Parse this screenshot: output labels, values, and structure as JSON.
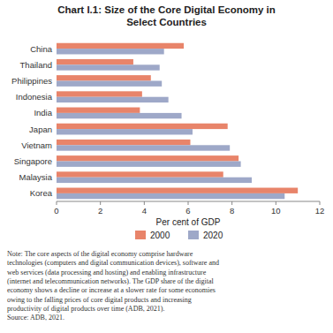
{
  "chart_data": {
    "type": "bar",
    "orientation": "horizontal",
    "title": "Chart I.1: Size of the Core Digital Economy in\nSelect Countries",
    "categories": [
      "China",
      "Thailand",
      "Philippines",
      "Indonesia",
      "India",
      "Japan",
      "Vietnam",
      "Singapore",
      "Malaysia",
      "Korea"
    ],
    "series": [
      {
        "name": "2000",
        "color": "#E8846A",
        "values": [
          5.8,
          3.5,
          4.3,
          3.9,
          3.8,
          7.8,
          6.1,
          8.3,
          7.6,
          11.0
        ]
      },
      {
        "name": "2020",
        "color": "#9EA8C8",
        "values": [
          4.9,
          4.7,
          4.8,
          5.1,
          5.7,
          6.2,
          7.9,
          8.4,
          8.9,
          10.4
        ]
      }
    ],
    "xlabel": "Per cent of GDP",
    "xlim": [
      0,
      12
    ],
    "xticks": [
      0,
      2,
      4,
      6,
      8,
      10,
      12
    ],
    "grid": false,
    "legend": "bottom",
    "note": "Note:  The core aspects of the digital economy comprise hardware\ntechnologies (computers and digital communication devices), software and\nweb services (data processing and hosting) and enabling infrastructure\n(internet and telecommunication networks). The GDP share of the digital\neconomy shows a decline or increase at a slower rate for some economies\nowing to the falling prices of core digital products and increasing\nproductivity of digital products over time (ADB, 2021).\nSource: ADB, 2021."
  }
}
